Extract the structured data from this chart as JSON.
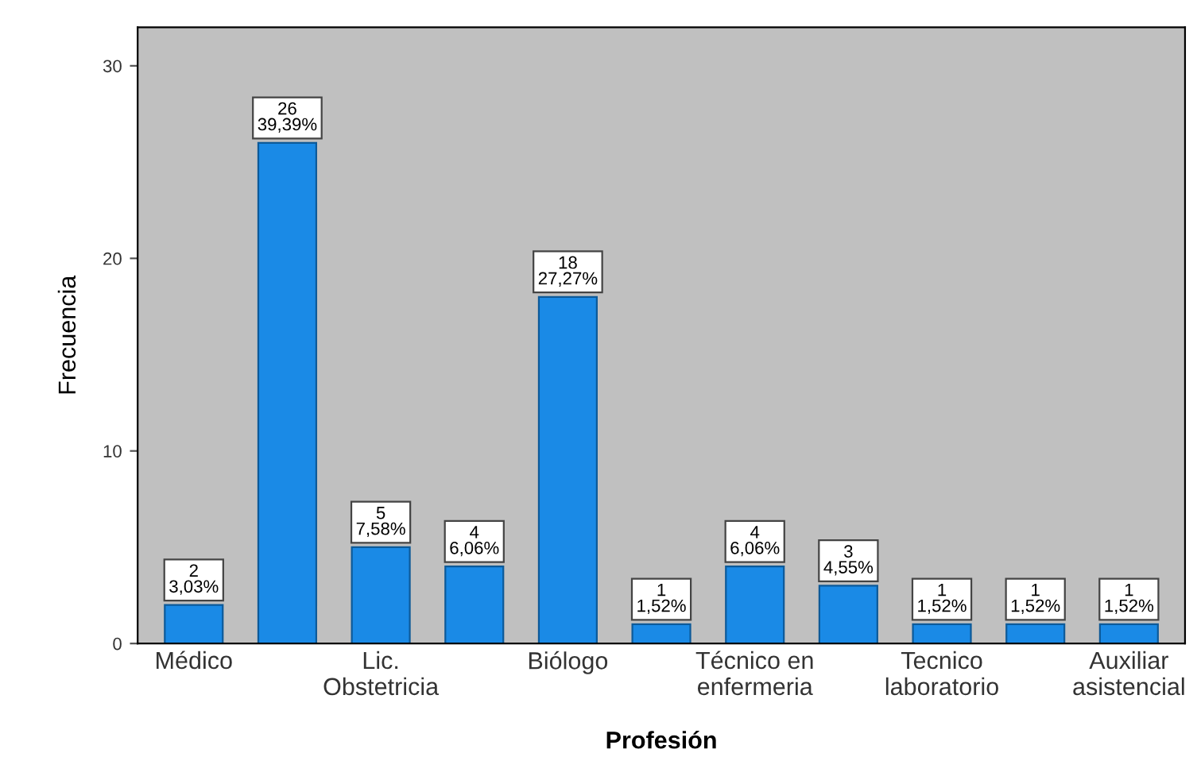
{
  "chart_data": {
    "type": "bar",
    "xlabel": "Profesión",
    "ylabel": "Frecuencia",
    "categories": [
      "Médico",
      null,
      "Lic.\nObstetricia",
      null,
      "Biólogo",
      null,
      "Técnico en\nenfermeria",
      null,
      "Tecnico\nlaboratorio",
      null,
      "Auxiliar\nasistencial"
    ],
    "values": [
      2,
      26,
      5,
      4,
      18,
      1,
      4,
      3,
      1,
      1,
      1
    ],
    "value_labels": [
      "2\n3,03%",
      "26\n39,39%",
      "5\n7,58%",
      "4\n6,06%",
      "18\n27,27%",
      "1\n1,52%",
      "4\n6,06%",
      "3\n4,55%",
      "1\n1,52%",
      "1\n1,52%",
      "1\n1,52%"
    ],
    "color": "#1a8ae6",
    "ylim": [
      0,
      32
    ],
    "yticks": [
      0,
      10,
      20,
      30
    ],
    "grid": false,
    "legend": false
  }
}
